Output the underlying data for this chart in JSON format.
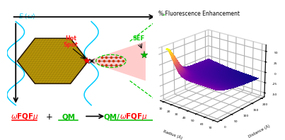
{
  "title_3d": "% Fluorescence Enhancement",
  "xlabel_3d": "Radius (Å)",
  "ylabel_3d": "Distance (Å)",
  "x_ticks": [
    10,
    20,
    30,
    40,
    50,
    60,
    70
  ],
  "y_ticks": [
    0,
    50,
    100,
    150,
    200
  ],
  "z_ticks": [
    -50,
    -25,
    0,
    25,
    50
  ],
  "e_omega_color": "#00ccff",
  "hot_spot_color": "#ff2222",
  "sef_color": "#00cc00",
  "bg_color": "#ffffff",
  "nano_face": "#b8960a",
  "nano_dark": "#7a6400",
  "nano_edge": "#2a1a00"
}
